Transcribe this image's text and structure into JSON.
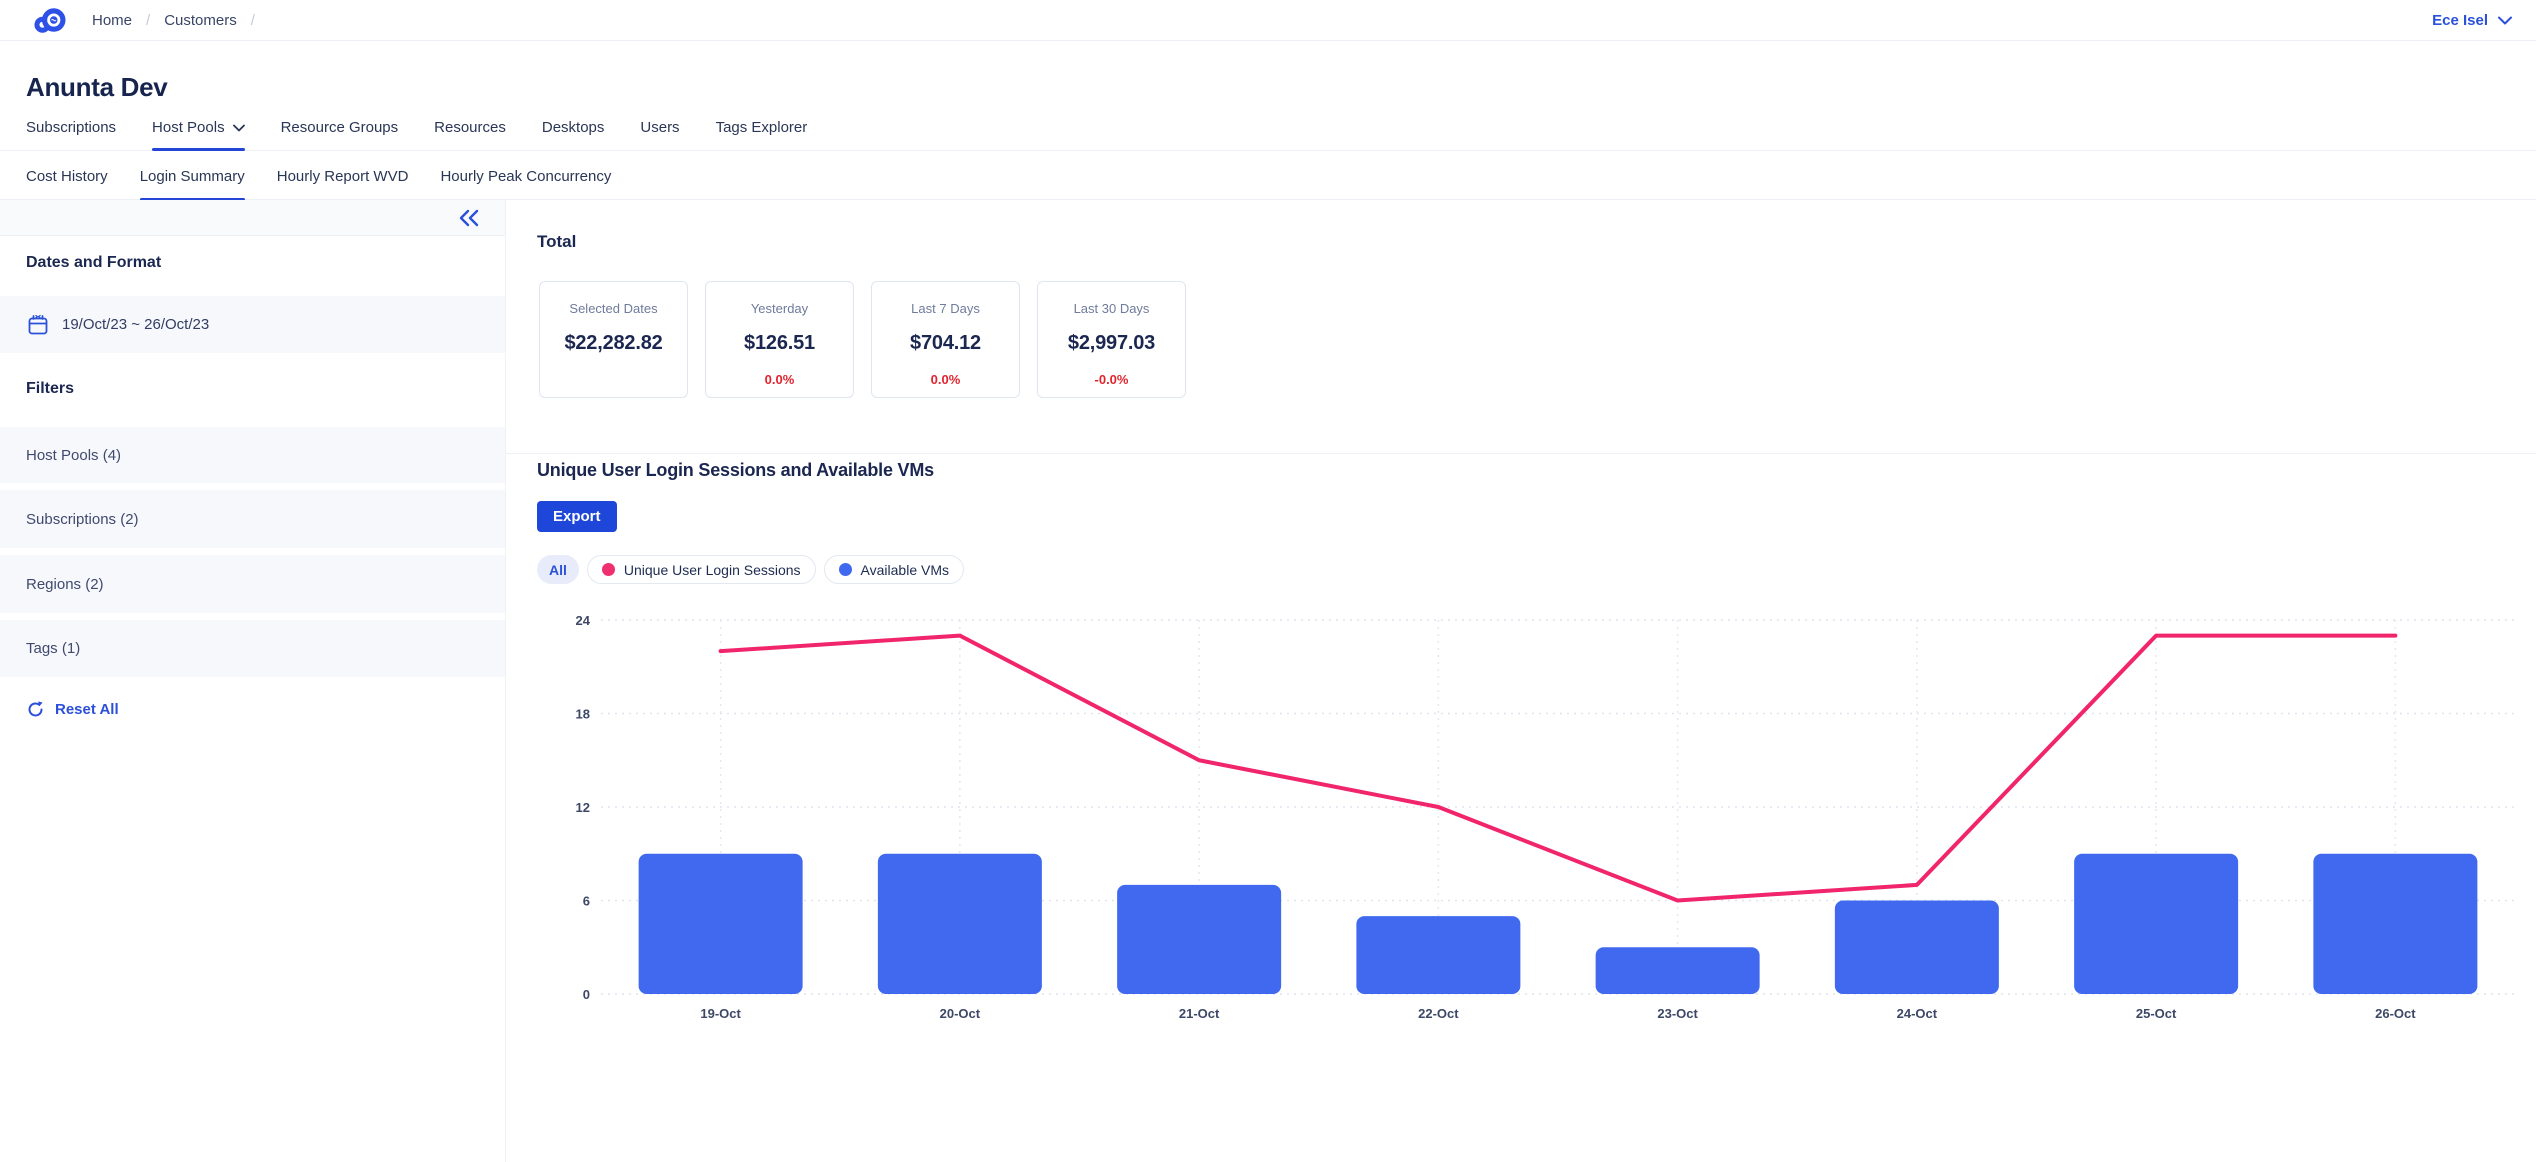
{
  "header": {
    "breadcrumb": {
      "items": [
        "Home",
        "Customers"
      ],
      "separator": "/"
    },
    "user": {
      "name": "Ece Isel"
    }
  },
  "page": {
    "title": "Anunta Dev"
  },
  "tabs": {
    "items": [
      "Subscriptions",
      "Host Pools",
      "Resource Groups",
      "Resources",
      "Desktops",
      "Users",
      "Tags Explorer"
    ],
    "active": "Host Pools"
  },
  "subtabs": {
    "items": [
      "Cost History",
      "Login Summary",
      "Hourly Report WVD",
      "Hourly Peak Concurrency"
    ],
    "active": "Login Summary"
  },
  "sidebar": {
    "dates_heading": "Dates and Format",
    "date_range": "19/Oct/23 ~ 26/Oct/23",
    "filters_heading": "Filters",
    "filters": [
      "Host Pools (4)",
      "Subscriptions (2)",
      "Regions (2)",
      "Tags (1)"
    ],
    "reset_label": "Reset All"
  },
  "total": {
    "heading": "Total",
    "cards": [
      {
        "label": "Selected Dates",
        "value": "$22,282.82",
        "pct": ""
      },
      {
        "label": "Yesterday",
        "value": "$126.51",
        "pct": "0.0%"
      },
      {
        "label": "Last 7 Days",
        "value": "$704.12",
        "pct": "0.0%"
      },
      {
        "label": "Last 30 Days",
        "value": "$2,997.03",
        "pct": "-0.0%"
      }
    ]
  },
  "chart_section": {
    "heading": "Unique User Login Sessions and Available VMs",
    "export_label": "Export",
    "legend_all": "All",
    "legend": [
      {
        "label": "Unique User Login Sessions",
        "color": "#F0306E"
      },
      {
        "label": "Available VMs",
        "color": "#4169F0"
      }
    ]
  },
  "chart_data": {
    "type": "bar+line",
    "title": "Unique User Login Sessions and Available VMs",
    "categories": [
      "19-Oct",
      "20-Oct",
      "21-Oct",
      "22-Oct",
      "23-Oct",
      "24-Oct",
      "25-Oct",
      "26-Oct"
    ],
    "series": [
      {
        "name": "Available VMs",
        "type": "bar",
        "color": "#4169F0",
        "values": [
          9,
          9,
          7,
          5,
          3,
          6,
          9,
          9
        ]
      },
      {
        "name": "Unique User Login Sessions",
        "type": "line",
        "color": "#F1256B",
        "values": [
          22,
          23,
          15,
          12,
          6,
          7,
          23,
          23
        ]
      }
    ],
    "xlabel": "",
    "ylabel": "",
    "ylim": [
      0,
      24
    ],
    "yticks": [
      0,
      6,
      12,
      18,
      24
    ],
    "grid": "dotted",
    "legend_position": "top"
  },
  "colors": {
    "accent_blue": "#2446D8",
    "link_blue": "#2B50D9",
    "negative_red": "#E0242E",
    "bar_blue": "#4169F0",
    "line_pink": "#F1256B"
  }
}
